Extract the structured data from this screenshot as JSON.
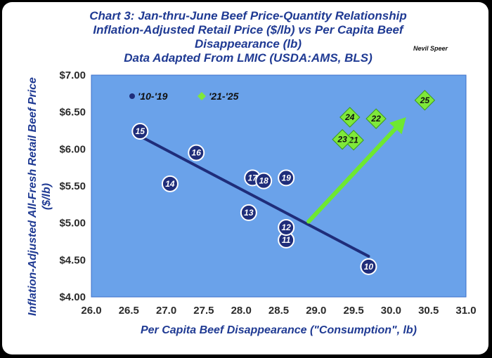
{
  "header": {
    "title_lines": [
      "Chart 3:  Jan-thru-June Beef Price-Quantity Relationship",
      "Inflation-Adjusted Retail Price ($/lb) vs Per Capita Beef",
      "Disappearance (lb)",
      "Data Adapted From LMIC (USDA:AMS, BLS)"
    ],
    "credit": "Nevil Speer"
  },
  "chart_data": {
    "type": "scatter",
    "title": "Chart 3:  Jan-thru-June Beef Price-Quantity Relationship Inflation-Adjusted Retail Price ($/lb) vs Per Capita Beef Disappearance (lb) Data Adapted From LMIC (USDA:AMS, BLS)",
    "xlabel": "Per Capita Beef Disappearance (\"Consumption\", lb)",
    "ylabel": "Inflation-Adjusted All-Fresh Retail Beef Price ($/lb)",
    "xlim": [
      26.0,
      31.0
    ],
    "ylim": [
      4.0,
      7.0
    ],
    "x_ticks": [
      "26.0",
      "26.5",
      "27.0",
      "27.5",
      "28.0",
      "28.5",
      "29.0",
      "29.5",
      "30.0",
      "30.5",
      "31.0"
    ],
    "y_ticks": [
      "$4.00",
      "$4.50",
      "$5.00",
      "$5.50",
      "$6.00",
      "$6.50",
      "$7.00"
    ],
    "grid": false,
    "legend_position": "top-left",
    "series": [
      {
        "name": "'10-'19",
        "color": "#1f2d7a",
        "marker": "circle",
        "points": [
          {
            "label": "10",
            "x": 29.7,
            "y": 4.41
          },
          {
            "label": "11",
            "x": 28.6,
            "y": 4.77
          },
          {
            "label": "12",
            "x": 28.6,
            "y": 4.94
          },
          {
            "label": "13",
            "x": 28.1,
            "y": 5.14
          },
          {
            "label": "14",
            "x": 27.05,
            "y": 5.53
          },
          {
            "label": "15",
            "x": 26.65,
            "y": 6.24
          },
          {
            "label": "16",
            "x": 27.4,
            "y": 5.95
          },
          {
            "label": "17",
            "x": 28.15,
            "y": 5.61
          },
          {
            "label": "18",
            "x": 28.3,
            "y": 5.57
          },
          {
            "label": "19",
            "x": 28.6,
            "y": 5.61
          }
        ]
      },
      {
        "name": "'21-'25",
        "color": "#7fe83a",
        "marker": "diamond",
        "points": [
          {
            "label": "21",
            "x": 29.5,
            "y": 6.12
          },
          {
            "label": "22",
            "x": 29.8,
            "y": 6.41
          },
          {
            "label": "23",
            "x": 29.35,
            "y": 6.13
          },
          {
            "label": "24",
            "x": 29.45,
            "y": 6.43
          },
          {
            "label": "25",
            "x": 30.45,
            "y": 6.66
          }
        ]
      }
    ],
    "trend_line": {
      "color": "#1f2d7a",
      "from": [
        26.6,
        6.2
      ],
      "to": [
        29.7,
        4.55
      ]
    },
    "arrow": {
      "color": "#6ee830",
      "from": [
        28.9,
        5.02
      ],
      "to": [
        30.2,
        6.43
      ]
    }
  }
}
